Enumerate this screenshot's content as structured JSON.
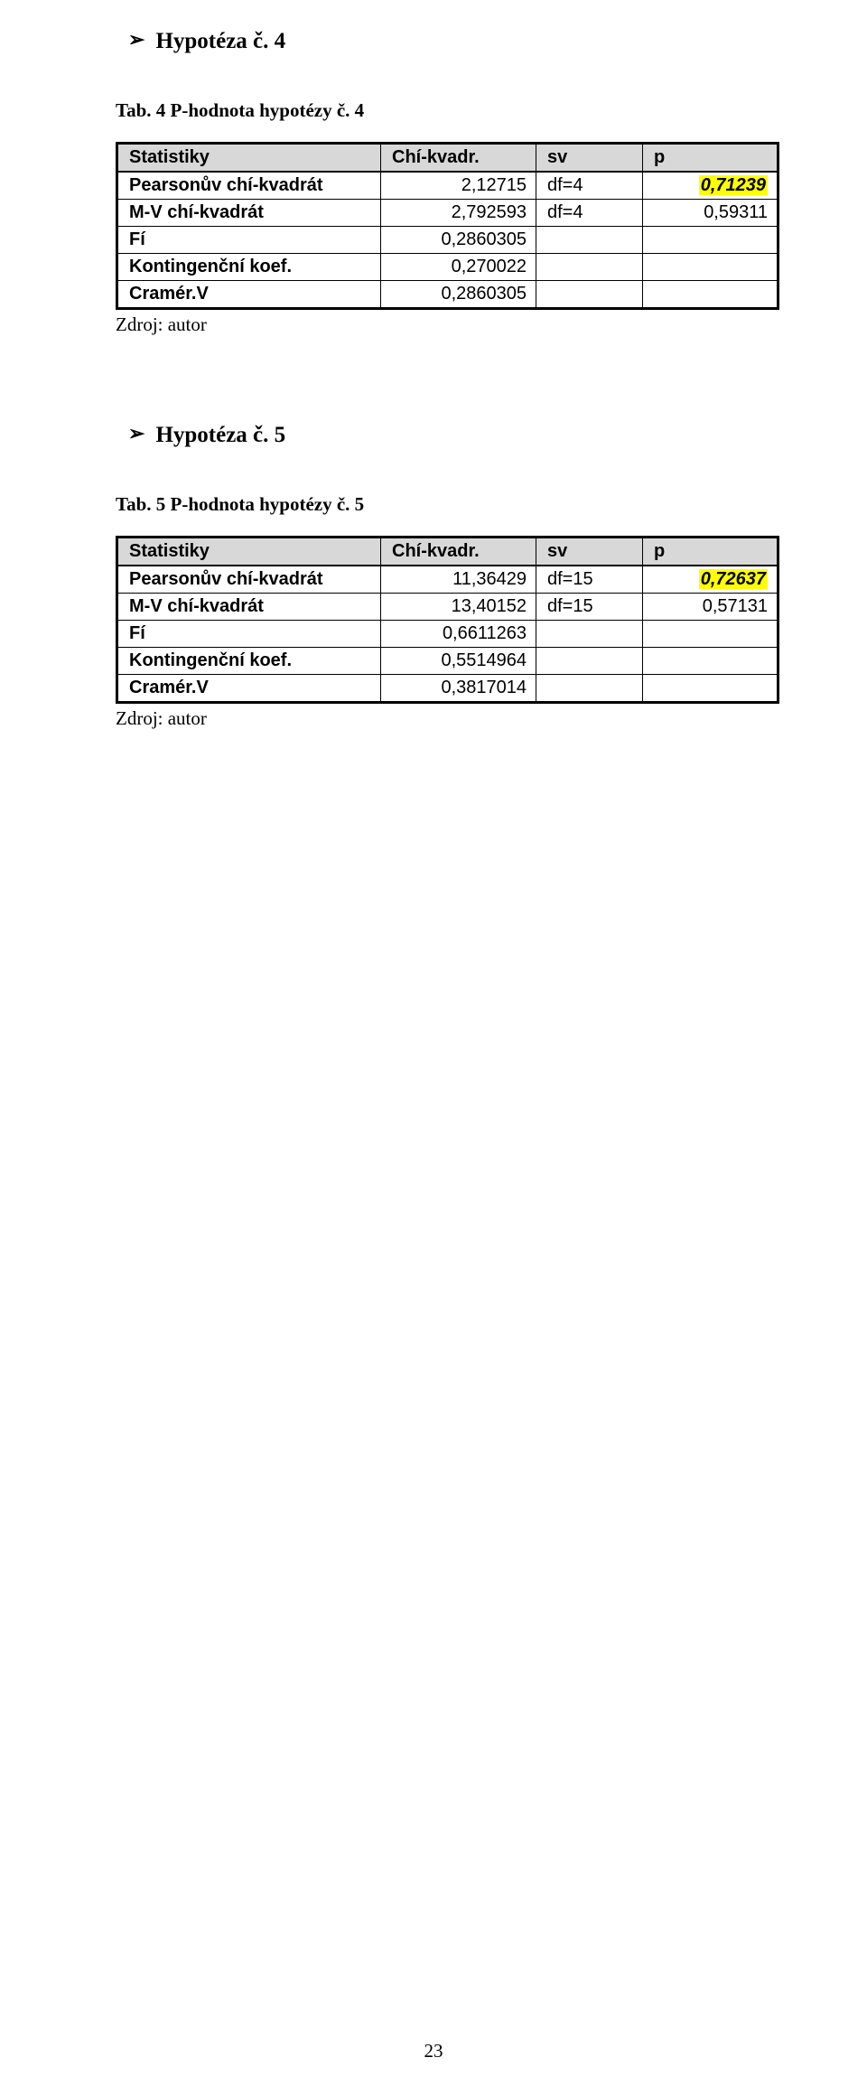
{
  "palette": {
    "header_bg": "#d8d8d8",
    "highlight_bg": "#ffff00",
    "text": "#000000",
    "page_bg": "#ffffff",
    "border": "#000000"
  },
  "page_number": "23",
  "arrow_glyph": "➢",
  "section4": {
    "heading": "Hypotéza č. 4",
    "caption": "Tab. 4 P-hodnota hypotézy č. 4",
    "header": {
      "c1": "Statistiky",
      "c2": "Chí-kvadr.",
      "c3": "sv",
      "c4": "p"
    },
    "rows": {
      "pearson": {
        "label": "Pearsonův chí-kvadrát",
        "chi": "2,12715",
        "sv": "df=4",
        "p": "0,71239",
        "p_highlight": true
      },
      "mv": {
        "label": "M-V chí-kvadrát",
        "chi": "2,792593",
        "sv": "df=4",
        "p": "0,59311",
        "p_highlight": false
      },
      "fi": {
        "label": "Fí",
        "chi": "0,2860305",
        "sv": "",
        "p": "",
        "p_highlight": false
      },
      "konting": {
        "label": "Kontingenční koef.",
        "chi": "0,270022",
        "sv": "",
        "p": "",
        "p_highlight": false
      },
      "cramer": {
        "label": "Cramér.V",
        "chi": "0,2860305",
        "sv": "",
        "p": "",
        "p_highlight": false
      }
    },
    "source": "Zdroj: autor"
  },
  "section5": {
    "heading": "Hypotéza č. 5",
    "caption": "Tab. 5 P-hodnota hypotézy č. 5",
    "header": {
      "c1": "Statistiky",
      "c2": "Chí-kvadr.",
      "c3": "sv",
      "c4": "p"
    },
    "rows": {
      "pearson": {
        "label": "Pearsonův chí-kvadrát",
        "chi": "11,36429",
        "sv": "df=15",
        "p": "0,72637",
        "p_highlight": true
      },
      "mv": {
        "label": "M-V chí-kvadrát",
        "chi": "13,40152",
        "sv": "df=15",
        "p": "0,57131",
        "p_highlight": false
      },
      "fi": {
        "label": "Fí",
        "chi": "0,6611263",
        "sv": "",
        "p": "",
        "p_highlight": false
      },
      "konting": {
        "label": "Kontingenční koef.",
        "chi": "0,5514964",
        "sv": "",
        "p": "",
        "p_highlight": false
      },
      "cramer": {
        "label": "Cramér.V",
        "chi": "0,3817014",
        "sv": "",
        "p": "",
        "p_highlight": false
      }
    },
    "source": "Zdroj: autor"
  }
}
